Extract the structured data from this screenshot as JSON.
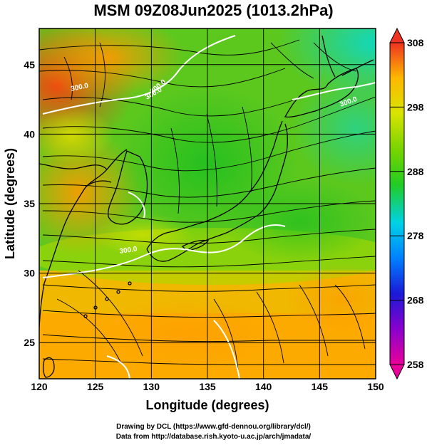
{
  "title": "MSM 09Z08Jun2025 (1013.2hPa)",
  "map": {
    "x_axis_label": "Longitude (degrees)",
    "y_axis_label": "Latitude  (degrees)",
    "lon_range": [
      120,
      150
    ],
    "lat_range": [
      22.4,
      47.6
    ],
    "lon_ticks": [
      120,
      125,
      130,
      135,
      140,
      145,
      150
    ],
    "lat_ticks": [
      25,
      30,
      35,
      40,
      45
    ],
    "lon_tick_labels": [
      "120",
      "125",
      "130",
      "135",
      "140",
      "145",
      "150"
    ],
    "lat_tick_labels": [
      "25",
      "30",
      "35",
      "40",
      "45"
    ],
    "grid": true,
    "field": "temperature (K)",
    "contour_labels": [
      "300.0",
      "300.0",
      "300.0",
      "300.0",
      "300.0"
    ]
  },
  "colorbar": {
    "range": [
      258,
      308
    ],
    "tick_labels": [
      "308",
      "298",
      "288",
      "278",
      "268",
      "258"
    ],
    "colors": [
      "#e8009a",
      "#8a00cc",
      "#1a1ad6",
      "#0080ff",
      "#00d2e6",
      "#22cc22",
      "#c4e000",
      "#ffd000",
      "#ff8a00",
      "#ee3322"
    ]
  },
  "credits": {
    "line1": "Drawing by DCL (https://www.gfd-dennou.org/library/dcl/)",
    "line2": "Data from http://database.rish.kyoto-u.ac.jp/arch/jmadata/"
  }
}
